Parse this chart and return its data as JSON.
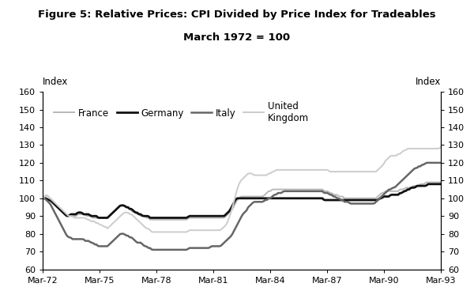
{
  "title_line1": "Figure 5: Relative Prices: CPI Divided by Price Index for Tradeables",
  "title_line2": "March 1972 = 100",
  "ylabel_left": "Index",
  "ylabel_right": "Index",
  "ylim": [
    60,
    160
  ],
  "yticks": [
    60,
    70,
    80,
    90,
    100,
    110,
    120,
    130,
    140,
    150,
    160
  ],
  "xtick_labels": [
    "Mar-72",
    "Mar-75",
    "Mar-78",
    "Mar-81",
    "Mar-84",
    "Mar-87",
    "Mar-90",
    "Mar-93"
  ],
  "colors": {
    "france": "#b8b8b8",
    "germany": "#111111",
    "italy": "#666666",
    "uk": "#cccccc"
  },
  "linewidths": {
    "france": 1.4,
    "germany": 2.0,
    "italy": 1.8,
    "uk": 1.4
  },
  "france": [
    100,
    101,
    102,
    101,
    100,
    99,
    98,
    96,
    95,
    94,
    93,
    92,
    91,
    90,
    90,
    90,
    90,
    90,
    90,
    91,
    91,
    91,
    91,
    91,
    90,
    90,
    90,
    89,
    89,
    89,
    89,
    89,
    89,
    89,
    89,
    89,
    90,
    91,
    92,
    93,
    94,
    95,
    96,
    96,
    96,
    95,
    95,
    94,
    93,
    92,
    92,
    91,
    91,
    90,
    90,
    90,
    89,
    89,
    88,
    88,
    88,
    88,
    88,
    88,
    88,
    88,
    88,
    88,
    88,
    88,
    88,
    88,
    88,
    88,
    88,
    88,
    88,
    88,
    88,
    89,
    89,
    89,
    89,
    89,
    89,
    89,
    89,
    89,
    89,
    89,
    89,
    89,
    89,
    89,
    89,
    89,
    89,
    89,
    89,
    90,
    91,
    92,
    93,
    95,
    97,
    99,
    100,
    101,
    101,
    101,
    101,
    101,
    101,
    101,
    101,
    101,
    101,
    101,
    101,
    101,
    102,
    103,
    104,
    104,
    105,
    105,
    105,
    105,
    105,
    105,
    105,
    105,
    105,
    105,
    105,
    105,
    105,
    105,
    105,
    105,
    105,
    105,
    105,
    105,
    105,
    105,
    105,
    105,
    105,
    105,
    105,
    105,
    104,
    104,
    104,
    103,
    103,
    102,
    102,
    102,
    101,
    101,
    101,
    100,
    100,
    100,
    100,
    100,
    100,
    100,
    100,
    100,
    100,
    100,
    100,
    100,
    100,
    100,
    100,
    100,
    100,
    101,
    102,
    103,
    103,
    104,
    104,
    104,
    104,
    104,
    104,
    104,
    104,
    105,
    105,
    105,
    106,
    106,
    106,
    106,
    107,
    107,
    107,
    107,
    108,
    108,
    108,
    109,
    109,
    109,
    109,
    109,
    109,
    109,
    109,
    109
  ],
  "germany": [
    100,
    100,
    100,
    99,
    99,
    98,
    97,
    96,
    95,
    94,
    93,
    92,
    91,
    90,
    90,
    91,
    91,
    91,
    91,
    92,
    92,
    92,
    91,
    91,
    91,
    91,
    90,
    90,
    90,
    90,
    89,
    89,
    89,
    89,
    89,
    89,
    90,
    91,
    92,
    93,
    94,
    95,
    96,
    96,
    96,
    95,
    95,
    94,
    94,
    93,
    92,
    92,
    91,
    91,
    90,
    90,
    90,
    90,
    89,
    89,
    89,
    89,
    89,
    89,
    89,
    89,
    89,
    89,
    89,
    89,
    89,
    89,
    89,
    89,
    89,
    89,
    89,
    89,
    89,
    90,
    90,
    90,
    90,
    90,
    90,
    90,
    90,
    90,
    90,
    90,
    90,
    90,
    90,
    90,
    90,
    90,
    90,
    90,
    90,
    91,
    92,
    93,
    95,
    97,
    99,
    100,
    100,
    100,
    100,
    100,
    100,
    100,
    100,
    100,
    100,
    100,
    100,
    100,
    100,
    100,
    100,
    100,
    100,
    100,
    100,
    100,
    100,
    100,
    100,
    100,
    100,
    100,
    100,
    100,
    100,
    100,
    100,
    100,
    100,
    100,
    100,
    100,
    100,
    100,
    100,
    100,
    100,
    100,
    100,
    100,
    100,
    100,
    99,
    99,
    99,
    99,
    99,
    99,
    99,
    99,
    99,
    99,
    99,
    99,
    99,
    99,
    99,
    99,
    99,
    99,
    99,
    99,
    99,
    99,
    99,
    99,
    99,
    99,
    99,
    99,
    99,
    99,
    100,
    100,
    101,
    101,
    101,
    101,
    102,
    102,
    102,
    102,
    102,
    103,
    103,
    104,
    104,
    105,
    105,
    106,
    106,
    106,
    107,
    107,
    107,
    107,
    107,
    107,
    108,
    108,
    108,
    108,
    108,
    108,
    108,
    108
  ],
  "italy": [
    100,
    100,
    99,
    98,
    97,
    95,
    93,
    91,
    89,
    87,
    85,
    83,
    81,
    79,
    78,
    78,
    77,
    77,
    77,
    77,
    77,
    77,
    77,
    76,
    76,
    76,
    75,
    75,
    74,
    74,
    73,
    73,
    73,
    73,
    73,
    73,
    74,
    75,
    76,
    77,
    78,
    79,
    80,
    80,
    80,
    79,
    79,
    78,
    78,
    77,
    76,
    75,
    75,
    75,
    74,
    73,
    73,
    72,
    72,
    71,
    71,
    71,
    71,
    71,
    71,
    71,
    71,
    71,
    71,
    71,
    71,
    71,
    71,
    71,
    71,
    71,
    71,
    71,
    71,
    72,
    72,
    72,
    72,
    72,
    72,
    72,
    72,
    72,
    72,
    72,
    72,
    73,
    73,
    73,
    73,
    73,
    73,
    74,
    75,
    76,
    77,
    78,
    79,
    81,
    83,
    85,
    87,
    89,
    91,
    92,
    93,
    95,
    96,
    97,
    98,
    98,
    98,
    98,
    98,
    98,
    99,
    99,
    100,
    100,
    101,
    102,
    102,
    103,
    103,
    103,
    104,
    104,
    104,
    104,
    104,
    104,
    104,
    104,
    104,
    104,
    104,
    104,
    104,
    104,
    104,
    104,
    104,
    104,
    104,
    104,
    104,
    104,
    103,
    103,
    103,
    102,
    102,
    101,
    101,
    100,
    100,
    99,
    99,
    98,
    98,
    98,
    97,
    97,
    97,
    97,
    97,
    97,
    97,
    97,
    97,
    97,
    97,
    97,
    97,
    97,
    98,
    99,
    100,
    101,
    102,
    103,
    104,
    105,
    105,
    106,
    106,
    107,
    108,
    109,
    110,
    111,
    112,
    113,
    114,
    115,
    116,
    117,
    117,
    118,
    118,
    119,
    119,
    120,
    120,
    120,
    120,
    120,
    120,
    120,
    120,
    120
  ],
  "uk": [
    100,
    101,
    102,
    101,
    100,
    99,
    98,
    97,
    96,
    95,
    94,
    93,
    92,
    91,
    90,
    90,
    90,
    89,
    89,
    89,
    89,
    89,
    89,
    89,
    88,
    88,
    87,
    87,
    87,
    86,
    86,
    85,
    85,
    84,
    84,
    83,
    84,
    85,
    86,
    87,
    88,
    89,
    90,
    91,
    92,
    92,
    92,
    91,
    91,
    90,
    89,
    88,
    87,
    86,
    85,
    84,
    83,
    83,
    82,
    81,
    81,
    81,
    81,
    81,
    81,
    81,
    81,
    81,
    81,
    81,
    81,
    81,
    81,
    81,
    81,
    81,
    81,
    81,
    81,
    82,
    82,
    82,
    82,
    82,
    82,
    82,
    82,
    82,
    82,
    82,
    82,
    82,
    82,
    82,
    82,
    82,
    82,
    83,
    84,
    85,
    87,
    90,
    93,
    97,
    101,
    105,
    108,
    110,
    111,
    112,
    113,
    114,
    114,
    114,
    113,
    113,
    113,
    113,
    113,
    113,
    113,
    113,
    114,
    114,
    115,
    115,
    116,
    116,
    116,
    116,
    116,
    116,
    116,
    116,
    116,
    116,
    116,
    116,
    116,
    116,
    116,
    116,
    116,
    116,
    116,
    116,
    116,
    116,
    116,
    116,
    116,
    116,
    116,
    116,
    116,
    115,
    115,
    115,
    115,
    115,
    115,
    115,
    115,
    115,
    115,
    115,
    115,
    115,
    115,
    115,
    115,
    115,
    115,
    115,
    115,
    115,
    115,
    115,
    115,
    115,
    115,
    116,
    117,
    118,
    119,
    121,
    122,
    123,
    124,
    124,
    124,
    124,
    125,
    125,
    126,
    127,
    127,
    128,
    128,
    128,
    128,
    128,
    128,
    128,
    128,
    128,
    128,
    128,
    128,
    128,
    128,
    128,
    128,
    128,
    128,
    129
  ]
}
